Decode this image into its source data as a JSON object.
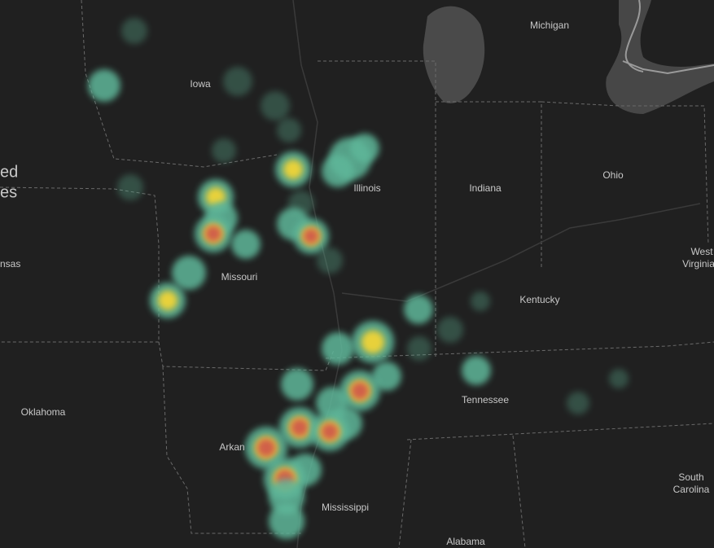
{
  "labels": [
    "Michigan",
    "Iowa",
    "ed",
    "es",
    "Illinois",
    "Indiana",
    "Ohio",
    "nsas",
    "Missouri",
    "West",
    "Virginia",
    "Kentucky",
    "Oklahoma",
    "Tennessee",
    "Arkan",
    "Mississippi",
    "South",
    "Carolina",
    "Alabama"
  ]
}
